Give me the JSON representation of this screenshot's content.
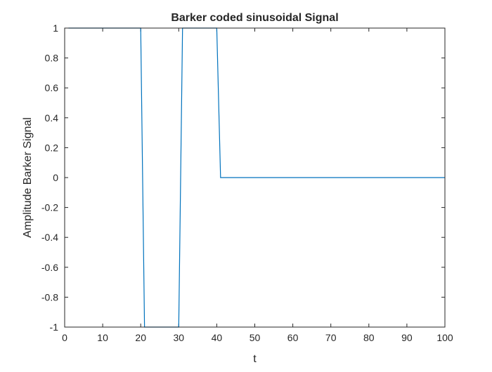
{
  "chart_data": {
    "type": "line",
    "title": "Barker coded sinusoidal Signal",
    "xlabel": "t",
    "ylabel": "Amplitude Barker Signal",
    "xlim": [
      0,
      100
    ],
    "ylim": [
      -1,
      1
    ],
    "xticks": [
      0,
      10,
      20,
      30,
      40,
      50,
      60,
      70,
      80,
      90,
      100
    ],
    "yticks": [
      -1,
      -0.8,
      -0.6,
      -0.4,
      -0.2,
      0,
      0.2,
      0.4,
      0.6,
      0.8,
      1
    ],
    "xtick_labels": [
      "0",
      "10",
      "20",
      "30",
      "40",
      "50",
      "60",
      "70",
      "80",
      "90",
      "100"
    ],
    "ytick_labels": [
      "-1",
      "-0.8",
      "-0.6",
      "-0.4",
      "-0.2",
      "0",
      "0.2",
      "0.4",
      "0.6",
      "0.8",
      "1"
    ],
    "grid": false,
    "series": [
      {
        "color": "#0072BD",
        "x": [
          1,
          20,
          21,
          30,
          31,
          40,
          41,
          100
        ],
        "y": [
          1,
          1,
          -1,
          -1,
          1,
          1,
          0,
          0
        ]
      }
    ]
  }
}
